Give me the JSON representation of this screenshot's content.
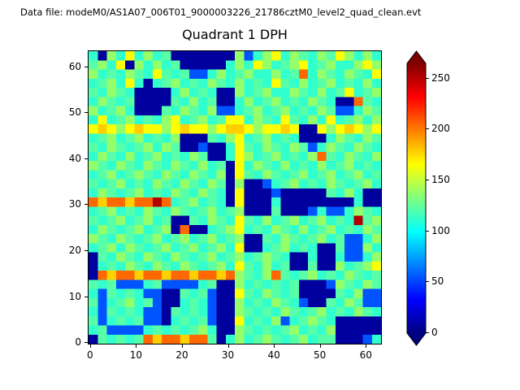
{
  "figure": {
    "data_file_label": "Data file: modeM0/AS1A07_006T01_9000003226_21786cztM0_level2_quad_clean.evt",
    "title": "Quadrant 1 DPH"
  },
  "chart_data": {
    "type": "heatmap",
    "title": "Quadrant 1 DPH",
    "xlabel": "",
    "ylabel": "",
    "x_range": [
      -0.5,
      63.5
    ],
    "y_range": [
      -0.5,
      63.5
    ],
    "x_ticks": [
      0,
      10,
      20,
      30,
      40,
      50,
      60
    ],
    "y_ticks": [
      0,
      10,
      20,
      30,
      40,
      50,
      60
    ],
    "colormap": "jet",
    "colorbar": {
      "ticks": [
        0,
        50,
        100,
        150,
        200,
        250
      ],
      "vmin": 0,
      "vmax": 265,
      "extend": "both"
    },
    "grid": false,
    "note": "64x64 detector pixel histogram, estimated here as a 32x32 grid of values (rows listed top to bottom, y=63 first)",
    "matrix": [
      [
        112,
        8,
        138,
        112,
        165,
        112,
        138,
        112,
        122,
        8,
        8,
        8,
        8,
        8,
        8,
        8,
        138,
        55,
        112,
        138,
        165,
        112,
        138,
        122,
        112,
        138,
        122,
        165,
        138,
        112,
        138,
        112
      ],
      [
        122,
        138,
        112,
        165,
        8,
        138,
        112,
        138,
        112,
        122,
        8,
        8,
        8,
        8,
        8,
        112,
        138,
        112,
        165,
        138,
        112,
        122,
        138,
        165,
        112,
        122,
        138,
        112,
        112,
        138,
        165,
        138
      ],
      [
        138,
        112,
        122,
        112,
        138,
        122,
        112,
        165,
        122,
        112,
        122,
        55,
        55,
        112,
        138,
        112,
        122,
        138,
        112,
        112,
        138,
        112,
        122,
        205,
        112,
        138,
        122,
        112,
        138,
        122,
        112,
        165
      ],
      [
        112,
        122,
        138,
        112,
        165,
        112,
        8,
        112,
        122,
        138,
        112,
        122,
        112,
        138,
        122,
        112,
        138,
        112,
        122,
        112,
        165,
        122,
        112,
        138,
        112,
        122,
        138,
        112,
        122,
        112,
        138,
        112
      ],
      [
        122,
        112,
        138,
        122,
        112,
        8,
        8,
        8,
        8,
        112,
        138,
        112,
        122,
        112,
        8,
        8,
        138,
        112,
        122,
        138,
        112,
        112,
        138,
        122,
        112,
        138,
        112,
        122,
        165,
        112,
        122,
        138
      ],
      [
        112,
        138,
        122,
        112,
        122,
        8,
        8,
        8,
        8,
        122,
        112,
        138,
        112,
        122,
        8,
        8,
        112,
        138,
        112,
        122,
        138,
        112,
        122,
        112,
        138,
        122,
        112,
        8,
        8,
        205,
        122,
        112
      ],
      [
        138,
        112,
        122,
        138,
        112,
        8,
        8,
        8,
        122,
        112,
        138,
        122,
        112,
        138,
        55,
        55,
        112,
        122,
        138,
        112,
        122,
        138,
        112,
        122,
        112,
        138,
        122,
        55,
        55,
        112,
        138,
        122
      ],
      [
        112,
        165,
        112,
        122,
        138,
        112,
        122,
        112,
        138,
        165,
        112,
        122,
        138,
        112,
        122,
        165,
        165,
        112,
        138,
        122,
        112,
        165,
        122,
        112,
        138,
        112,
        165,
        112,
        122,
        138,
        112,
        138
      ],
      [
        165,
        178,
        165,
        138,
        165,
        178,
        165,
        165,
        138,
        165,
        178,
        165,
        165,
        138,
        165,
        178,
        178,
        165,
        138,
        165,
        165,
        178,
        165,
        8,
        8,
        165,
        138,
        165,
        178,
        165,
        138,
        165
      ],
      [
        112,
        122,
        138,
        112,
        122,
        138,
        112,
        122,
        112,
        138,
        8,
        8,
        8,
        122,
        112,
        138,
        165,
        112,
        122,
        138,
        112,
        122,
        112,
        8,
        8,
        8,
        112,
        138,
        122,
        112,
        138,
        122
      ],
      [
        122,
        112,
        138,
        122,
        112,
        122,
        138,
        112,
        138,
        122,
        8,
        8,
        55,
        8,
        8,
        112,
        165,
        122,
        112,
        138,
        122,
        112,
        138,
        122,
        55,
        112,
        138,
        122,
        112,
        138,
        122,
        112
      ],
      [
        112,
        138,
        122,
        112,
        138,
        112,
        122,
        138,
        112,
        122,
        112,
        138,
        122,
        8,
        8,
        112,
        165,
        138,
        112,
        122,
        138,
        112,
        122,
        112,
        138,
        205,
        122,
        112,
        138,
        122,
        112,
        138
      ],
      [
        138,
        122,
        112,
        138,
        122,
        112,
        138,
        122,
        112,
        138,
        122,
        112,
        138,
        112,
        122,
        8,
        165,
        112,
        138,
        122,
        112,
        138,
        112,
        122,
        112,
        138,
        112,
        122,
        138,
        112,
        122,
        112
      ],
      [
        112,
        122,
        138,
        112,
        122,
        138,
        122,
        112,
        138,
        122,
        112,
        138,
        122,
        112,
        138,
        8,
        165,
        122,
        112,
        138,
        122,
        112,
        122,
        138,
        112,
        122,
        138,
        112,
        122,
        138,
        112,
        122
      ],
      [
        122,
        112,
        122,
        138,
        112,
        122,
        112,
        138,
        122,
        112,
        138,
        122,
        112,
        138,
        122,
        8,
        138,
        8,
        8,
        55,
        112,
        122,
        138,
        112,
        122,
        112,
        138,
        122,
        112,
        122,
        138,
        112
      ],
      [
        112,
        138,
        122,
        112,
        122,
        138,
        112,
        122,
        112,
        138,
        122,
        112,
        138,
        122,
        112,
        8,
        165,
        8,
        8,
        8,
        55,
        8,
        8,
        8,
        8,
        8,
        122,
        112,
        138,
        112,
        8,
        8
      ],
      [
        205,
        178,
        205,
        205,
        178,
        205,
        205,
        252,
        205,
        112,
        122,
        138,
        112,
        122,
        112,
        8,
        165,
        8,
        8,
        8,
        112,
        8,
        8,
        8,
        8,
        8,
        8,
        8,
        8,
        112,
        8,
        8
      ],
      [
        112,
        122,
        138,
        112,
        122,
        112,
        138,
        122,
        112,
        138,
        122,
        112,
        122,
        138,
        112,
        122,
        138,
        8,
        8,
        8,
        122,
        8,
        8,
        8,
        55,
        112,
        55,
        55,
        112,
        138,
        122,
        112
      ],
      [
        122,
        112,
        122,
        138,
        112,
        122,
        138,
        112,
        122,
        8,
        8,
        122,
        112,
        138,
        122,
        112,
        165,
        122,
        112,
        138,
        112,
        122,
        138,
        112,
        122,
        138,
        112,
        122,
        112,
        252,
        122,
        138
      ],
      [
        112,
        138,
        122,
        112,
        122,
        138,
        112,
        122,
        138,
        8,
        205,
        8,
        8,
        112,
        122,
        138,
        165,
        112,
        122,
        112,
        138,
        122,
        112,
        138,
        112,
        122,
        138,
        112,
        122,
        112,
        138,
        122
      ],
      [
        138,
        122,
        112,
        138,
        122,
        112,
        122,
        138,
        112,
        122,
        138,
        112,
        122,
        138,
        112,
        122,
        138,
        8,
        8,
        122,
        112,
        138,
        122,
        112,
        122,
        138,
        112,
        122,
        55,
        55,
        112,
        138
      ],
      [
        112,
        122,
        138,
        112,
        138,
        122,
        112,
        122,
        138,
        112,
        122,
        138,
        112,
        122,
        138,
        112,
        165,
        8,
        8,
        112,
        122,
        138,
        112,
        122,
        112,
        8,
        8,
        122,
        55,
        55,
        138,
        112
      ],
      [
        8,
        122,
        112,
        138,
        122,
        112,
        138,
        122,
        112,
        138,
        122,
        112,
        122,
        138,
        112,
        122,
        138,
        112,
        122,
        138,
        122,
        112,
        8,
        8,
        112,
        8,
        8,
        112,
        55,
        55,
        112,
        138
      ],
      [
        8,
        112,
        122,
        112,
        138,
        122,
        112,
        138,
        122,
        112,
        138,
        122,
        112,
        122,
        138,
        112,
        165,
        122,
        112,
        138,
        112,
        122,
        8,
        8,
        122,
        8,
        8,
        138,
        112,
        122,
        138,
        165
      ],
      [
        8,
        205,
        178,
        205,
        205,
        178,
        205,
        205,
        178,
        205,
        205,
        178,
        205,
        205,
        178,
        205,
        138,
        122,
        112,
        138,
        205,
        122,
        112,
        122,
        138,
        112,
        122,
        112,
        138,
        122,
        112,
        122
      ],
      [
        122,
        112,
        122,
        55,
        55,
        55,
        112,
        122,
        55,
        55,
        55,
        55,
        112,
        122,
        8,
        8,
        138,
        112,
        122,
        112,
        122,
        112,
        122,
        8,
        8,
        8,
        55,
        138,
        122,
        112,
        138,
        122
      ],
      [
        112,
        55,
        122,
        112,
        122,
        112,
        55,
        55,
        8,
        8,
        122,
        112,
        122,
        55,
        8,
        8,
        165,
        122,
        112,
        138,
        122,
        112,
        122,
        8,
        8,
        8,
        8,
        122,
        112,
        138,
        55,
        55
      ],
      [
        122,
        55,
        112,
        122,
        138,
        112,
        122,
        55,
        8,
        8,
        112,
        122,
        112,
        55,
        8,
        8,
        138,
        112,
        122,
        112,
        138,
        122,
        112,
        55,
        8,
        8,
        122,
        112,
        138,
        122,
        55,
        55
      ],
      [
        112,
        55,
        122,
        112,
        122,
        112,
        55,
        55,
        8,
        122,
        112,
        122,
        112,
        55,
        8,
        8,
        138,
        122,
        112,
        122,
        112,
        138,
        122,
        112,
        122,
        138,
        112,
        122,
        112,
        138,
        122,
        112
      ],
      [
        122,
        55,
        112,
        122,
        112,
        122,
        55,
        55,
        8,
        112,
        122,
        112,
        122,
        55,
        8,
        8,
        165,
        112,
        122,
        112,
        138,
        55,
        112,
        122,
        138,
        122,
        112,
        8,
        8,
        8,
        8,
        8
      ],
      [
        112,
        122,
        55,
        55,
        55,
        55,
        112,
        122,
        112,
        122,
        112,
        122,
        138,
        112,
        8,
        8,
        138,
        122,
        112,
        122,
        112,
        122,
        138,
        112,
        122,
        112,
        138,
        8,
        8,
        8,
        8,
        8
      ],
      [
        8,
        122,
        112,
        122,
        112,
        122,
        205,
        178,
        205,
        205,
        178,
        205,
        205,
        122,
        8,
        112,
        138,
        112,
        122,
        138,
        122,
        112,
        122,
        138,
        112,
        122,
        122,
        8,
        8,
        8,
        55,
        112
      ]
    ]
  }
}
